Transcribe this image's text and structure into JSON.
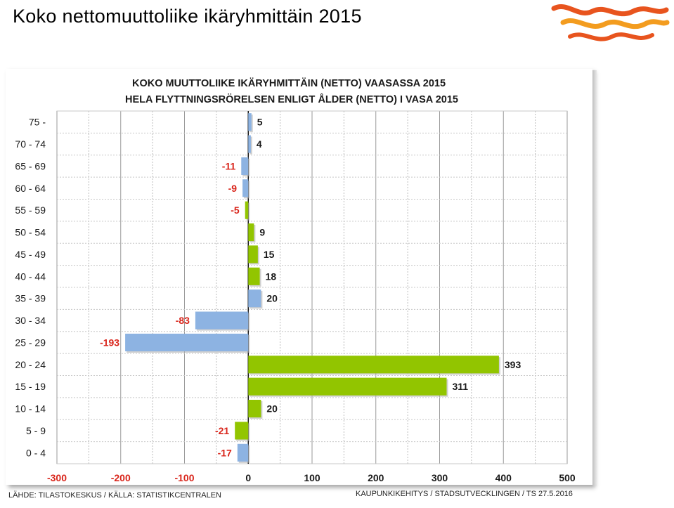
{
  "slide": {
    "title": "Koko nettomuuttoliike ikäryhmittäin 2015"
  },
  "footer": {
    "source": "LÄHDE: TILASTOKESKUS / KÄLLA: STATISTIKCENTRALEN",
    "credit": "KAUPUNKIKEHITYS  / STADSUTVECKLINGEN / TS 27.5.2016"
  },
  "logo": {
    "icon": "wave-logo-icon",
    "colors": [
      "#e8541e",
      "#f39c1f"
    ]
  },
  "chart_data": {
    "type": "bar",
    "orientation": "horizontal",
    "title": "KOKO MUUTTOLIIKE IKÄRYHMITTÄIN (NETTO) VAASASSA 2015",
    "subtitle": "HELA FLYTTNINGSRÖRELSEN ENLIGT ÅLDER (NETTO) I VASA 2015",
    "categories": [
      "75 -",
      "70 - 74",
      "65 - 69",
      "60 - 64",
      "55 - 59",
      "50 - 54",
      "45 - 49",
      "40 - 44",
      "35 - 39",
      "30 - 34",
      "25 - 29",
      "20 - 24",
      "15 - 19",
      "10 - 14",
      "5 - 9",
      "0 - 4"
    ],
    "values": [
      5,
      4,
      -11,
      -9,
      -5,
      9,
      15,
      18,
      20,
      -83,
      -193,
      393,
      311,
      20,
      -21,
      -17
    ],
    "data_labels": [
      "5",
      "4",
      "-11",
      "-9",
      "-5",
      "9",
      "15",
      "18",
      "20",
      "-83",
      "-193",
      "393",
      "311",
      "20",
      "-21",
      "-17"
    ],
    "bar_colors": [
      "#8db3e2",
      "#8db3e2",
      "#8db3e2",
      "#8db3e2",
      "#92c500",
      "#92c500",
      "#92c500",
      "#92c500",
      "#8db3e2",
      "#8db3e2",
      "#8db3e2",
      "#92c500",
      "#92c500",
      "#92c500",
      "#92c500",
      "#8db3e2"
    ],
    "xlim": [
      -300,
      500
    ],
    "xticks": [
      -300,
      -200,
      -100,
      0,
      100,
      200,
      300,
      400,
      500
    ],
    "xtick_labels": [
      "-300",
      "-200",
      "-100",
      "0",
      "100",
      "200",
      "300",
      "400",
      "500"
    ],
    "negative_label_color": "#d9261c",
    "positive_label_color": "#1a1a1a",
    "grid": true
  }
}
